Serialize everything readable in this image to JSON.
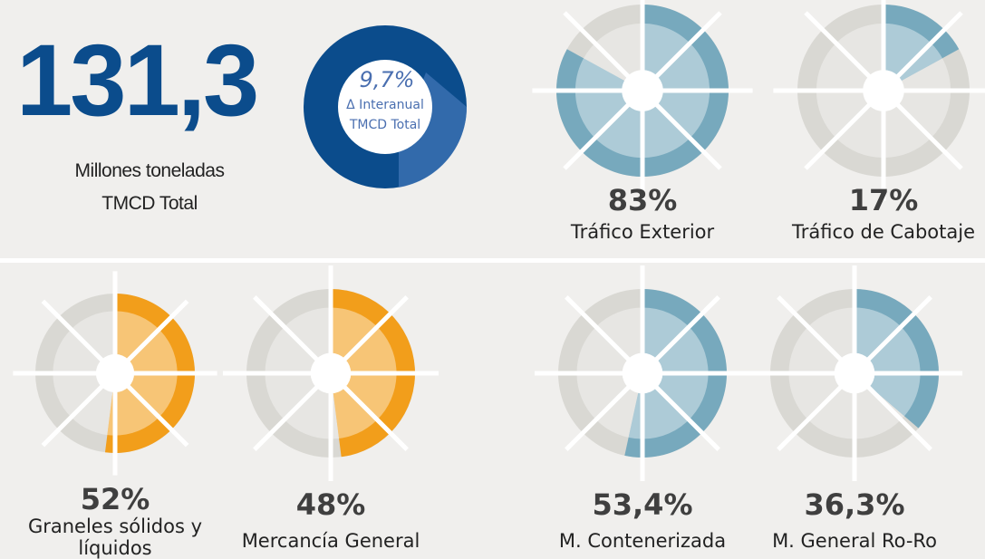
{
  "headline": {
    "value": 131.3,
    "value_label": "131,3",
    "caption": [
      "Millones toneladas",
      "TMCD Total"
    ]
  },
  "change": {
    "value": 9.7,
    "value_label": "9,7%",
    "caption": [
      "Δ Interanual",
      "TMCD Total"
    ]
  },
  "gauges": [
    {
      "value": 83,
      "value_label": "83%",
      "label": [
        "Tráfico Exterior"
      ],
      "color": "#77a9bd"
    },
    {
      "value": 17,
      "value_label": "17%",
      "label": [
        "Tráfico de Cabotaje"
      ],
      "color": "#77a9bd"
    },
    {
      "value": 52,
      "value_label": "52%",
      "label": [
        "Graneles sólidos y",
        "líquidos"
      ],
      "color": "#f29e1b"
    },
    {
      "value": 48,
      "value_label": "48%",
      "label": [
        "Mercancía General"
      ],
      "color": "#f29e1b"
    },
    {
      "value": 53.4,
      "value_label": "53,4%",
      "label": [
        "M. Contenerizada"
      ],
      "color": "#77a9bd"
    },
    {
      "value": 36.3,
      "value_label": "36,3%",
      "label": [
        "M. General Ro-Ro"
      ],
      "color": "#77a9bd"
    }
  ]
}
